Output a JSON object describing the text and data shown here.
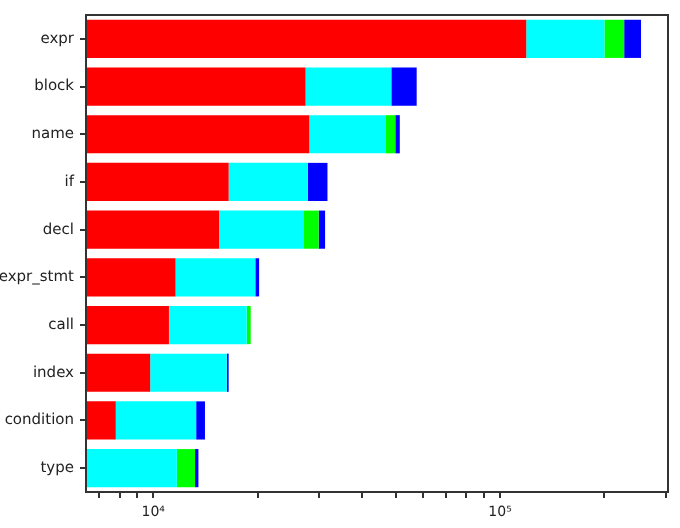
{
  "chart_data": {
    "type": "bar",
    "orientation": "horizontal",
    "stacked": true,
    "log": "x",
    "categories": [
      "expr",
      "block",
      "name",
      "if",
      "decl",
      "expr_stmt",
      "call",
      "index",
      "condition",
      "type"
    ],
    "series": [
      {
        "color": "#ff0000",
        "values": [
          119000,
          27500,
          28200,
          16500,
          15500,
          11600,
          11100,
          9800,
          7800,
          null
        ]
      },
      {
        "color": "#00ffff",
        "base": [
          119000,
          27500,
          28200,
          16500,
          15500,
          11600,
          11100,
          9800,
          7800,
          null
        ],
        "values": [
          81000,
          21100,
          18500,
          11400,
          11700,
          8100,
          7500,
          6500,
          5500,
          11700
        ]
      },
      {
        "color": "#00ff00",
        "base": [
          200000,
          null,
          46700,
          null,
          27200,
          null,
          18600,
          null,
          null,
          11700
        ],
        "values": [
          28000,
          null,
          3200,
          null,
          2800,
          null,
          500,
          null,
          null,
          1500
        ]
      },
      {
        "color": "#0000ff",
        "base": [
          228000,
          48600,
          49900,
          27900,
          30000,
          19700,
          null,
          16300,
          13300,
          13200
        ],
        "values": [
          27000,
          8900,
          1500,
          3900,
          1300,
          500,
          null,
          200,
          800,
          300
        ]
      }
    ],
    "xlim": [
      6400,
      305000
    ],
    "xticks": [
      {
        "value": 7000,
        "label": null
      },
      {
        "value": 8000,
        "label": null
      },
      {
        "value": 9000,
        "label": null
      },
      {
        "value": 10000,
        "label": "10⁴"
      },
      {
        "value": 20000,
        "label": null
      },
      {
        "value": 30000,
        "label": null
      },
      {
        "value": 40000,
        "label": null
      },
      {
        "value": 50000,
        "label": null
      },
      {
        "value": 60000,
        "label": null
      },
      {
        "value": 70000,
        "label": null
      },
      {
        "value": 80000,
        "label": null
      },
      {
        "value": 90000,
        "label": null
      },
      {
        "value": 100000,
        "label": "10⁵"
      },
      {
        "value": 200000,
        "label": null
      },
      {
        "value": 300000,
        "label": null
      }
    ]
  }
}
